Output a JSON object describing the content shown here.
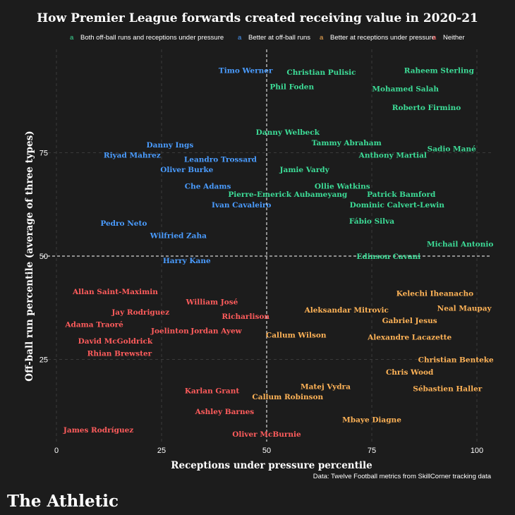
{
  "chart_data": {
    "type": "scatter",
    "title": "How Premier League forwards created receiving value in 2020-21",
    "xlabel": "Receptions under pressure percentile",
    "ylabel": "Off-ball run percentile (average of three types)",
    "xlim": [
      0,
      100
    ],
    "ylim": [
      0,
      100
    ],
    "x_ticks": [
      0,
      25,
      50,
      75,
      100
    ],
    "y_ticks": [
      25,
      50,
      75
    ],
    "grid": true,
    "reference_lines": {
      "x": 50,
      "y": 50
    },
    "legend_placement": "top",
    "categories": [
      {
        "key": "both",
        "marker": "a",
        "label": "Both off-ball runs and receptions under pressure",
        "color": "#3ddc97"
      },
      {
        "key": "runs",
        "marker": "a",
        "label": "Better at off-ball runs",
        "color": "#4a9cff"
      },
      {
        "key": "receptions",
        "marker": "a",
        "label": "Better at receptions under pressure",
        "color": "#ffb357"
      },
      {
        "key": "neither",
        "marker": "a",
        "label": "Neither",
        "color": "#ff5c5c"
      }
    ],
    "points": [
      {
        "name": "Timo Werner",
        "x": 45,
        "y": 95,
        "group": "runs"
      },
      {
        "name": "Christian Pulisic",
        "x": 63,
        "y": 94.5,
        "group": "both"
      },
      {
        "name": "Raheem Sterling",
        "x": 91,
        "y": 95,
        "group": "both"
      },
      {
        "name": "Phil Foden",
        "x": 56,
        "y": 91,
        "group": "both"
      },
      {
        "name": "Mohamed Salah",
        "x": 83,
        "y": 90.5,
        "group": "both"
      },
      {
        "name": "Roberto Firmino",
        "x": 88,
        "y": 86,
        "group": "both"
      },
      {
        "name": "Danny Welbeck",
        "x": 55,
        "y": 80,
        "group": "both"
      },
      {
        "name": "Tammy Abraham",
        "x": 69,
        "y": 77.5,
        "group": "both"
      },
      {
        "name": "Sadio Mané",
        "x": 94,
        "y": 76,
        "group": "both"
      },
      {
        "name": "Anthony Martial",
        "x": 80,
        "y": 74.5,
        "group": "both"
      },
      {
        "name": "Danny Ings",
        "x": 27,
        "y": 77,
        "group": "runs"
      },
      {
        "name": "Riyad Mahrez",
        "x": 18,
        "y": 74.5,
        "group": "runs"
      },
      {
        "name": "Leandro Trossard",
        "x": 39,
        "y": 73.5,
        "group": "runs"
      },
      {
        "name": "Oliver Burke",
        "x": 31,
        "y": 71,
        "group": "runs"
      },
      {
        "name": "Jamie Vardy",
        "x": 59,
        "y": 71,
        "group": "both"
      },
      {
        "name": "Che Adams",
        "x": 36,
        "y": 67,
        "group": "runs"
      },
      {
        "name": "Ollie Watkins",
        "x": 68,
        "y": 67,
        "group": "both"
      },
      {
        "name": "Pierre-Emerick Aubameyang",
        "x": 55,
        "y": 65,
        "group": "both"
      },
      {
        "name": "Patrick Bamford",
        "x": 82,
        "y": 65,
        "group": "both"
      },
      {
        "name": "Ivan Cavaleiro",
        "x": 44,
        "y": 62.5,
        "group": "runs"
      },
      {
        "name": "Dominic Calvert-Lewin",
        "x": 81,
        "y": 62.5,
        "group": "both"
      },
      {
        "name": "Pedro Neto",
        "x": 16,
        "y": 58,
        "group": "runs"
      },
      {
        "name": "Fábio Silva",
        "x": 75,
        "y": 58.5,
        "group": "both"
      },
      {
        "name": "Wilfried Zaha",
        "x": 29,
        "y": 55,
        "group": "runs"
      },
      {
        "name": "Michail Antonio",
        "x": 96,
        "y": 53,
        "group": "both"
      },
      {
        "name": "Edinson Cavani",
        "x": 79,
        "y": 50,
        "group": "both"
      },
      {
        "name": "Harry Kane",
        "x": 31,
        "y": 49,
        "group": "runs"
      },
      {
        "name": "Allan Saint-Maximin",
        "x": 14,
        "y": 41.5,
        "group": "neither"
      },
      {
        "name": "Kelechi Iheanacho",
        "x": 90,
        "y": 41,
        "group": "receptions"
      },
      {
        "name": "William José",
        "x": 37,
        "y": 39,
        "group": "neither"
      },
      {
        "name": "Neal Maupay",
        "x": 97,
        "y": 37.5,
        "group": "receptions"
      },
      {
        "name": "Aleksandar Mitrovic",
        "x": 69,
        "y": 37,
        "group": "receptions"
      },
      {
        "name": "Jay Rodriguez",
        "x": 20,
        "y": 36.5,
        "group": "neither"
      },
      {
        "name": "Richarlison",
        "x": 45,
        "y": 35.5,
        "group": "neither"
      },
      {
        "name": "Gabriel Jesus",
        "x": 84,
        "y": 34.5,
        "group": "receptions"
      },
      {
        "name": "Adama Traoré",
        "x": 9,
        "y": 33.5,
        "group": "neither"
      },
      {
        "name": "Joelinton",
        "x": 27,
        "y": 32,
        "group": "neither"
      },
      {
        "name": "Jordan Ayew",
        "x": 38,
        "y": 32,
        "group": "neither"
      },
      {
        "name": "Callum Wilson",
        "x": 57,
        "y": 31,
        "group": "receptions"
      },
      {
        "name": "Alexandre Lacazette",
        "x": 84,
        "y": 30.5,
        "group": "receptions"
      },
      {
        "name": "David McGoldrick",
        "x": 14,
        "y": 29.5,
        "group": "neither"
      },
      {
        "name": "Rhian Brewster",
        "x": 15,
        "y": 26.5,
        "group": "neither"
      },
      {
        "name": "Christian Benteke",
        "x": 95,
        "y": 25,
        "group": "receptions"
      },
      {
        "name": "Chris Wood",
        "x": 84,
        "y": 22,
        "group": "receptions"
      },
      {
        "name": "Matej Vydra",
        "x": 64,
        "y": 18.5,
        "group": "receptions"
      },
      {
        "name": "Karlan Grant",
        "x": 37,
        "y": 17.5,
        "group": "neither"
      },
      {
        "name": "Sébastien Haller",
        "x": 93,
        "y": 18,
        "group": "receptions"
      },
      {
        "name": "Callum Robinson",
        "x": 55,
        "y": 16,
        "group": "receptions"
      },
      {
        "name": "Ashley Barnes",
        "x": 40,
        "y": 12.5,
        "group": "neither"
      },
      {
        "name": "Mbaye Diagne",
        "x": 75,
        "y": 10.5,
        "group": "receptions"
      },
      {
        "name": "James Rodríguez",
        "x": 10,
        "y": 8,
        "group": "neither"
      },
      {
        "name": "Oliver McBurnie",
        "x": 50,
        "y": 7,
        "group": "neither"
      }
    ],
    "source": "Data: Twelve Football metrics from SkillCorner tracking data",
    "brand": "The Athletic"
  }
}
